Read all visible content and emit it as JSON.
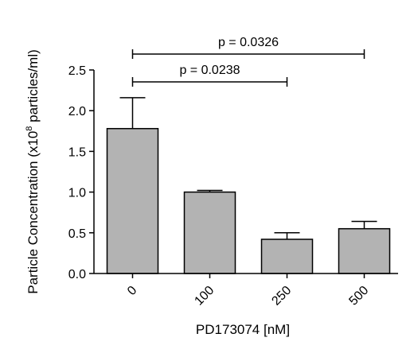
{
  "chart_data": {
    "type": "bar",
    "categories": [
      "0",
      "100",
      "250",
      "500"
    ],
    "values": [
      1.78,
      1.0,
      0.42,
      0.55
    ],
    "errors": [
      0.38,
      0.02,
      0.08,
      0.09
    ],
    "xlabel": "PD173074 [nM]",
    "ylabel_prefix": "Particle Concentration (x10",
    "ylabel_sup": "8",
    "ylabel_suffix": " particles/ml)",
    "ylim": [
      0,
      2.5
    ],
    "yticks": [
      "0.0",
      "0.5",
      "1.0",
      "1.5",
      "2.0",
      "2.5"
    ],
    "bar_color": "#b3b3b3",
    "grid": false,
    "significance": [
      {
        "from": "0",
        "to": "250",
        "label": "p = 0.0238"
      },
      {
        "from": "0",
        "to": "500",
        "label": "p = 0.0326"
      }
    ]
  }
}
